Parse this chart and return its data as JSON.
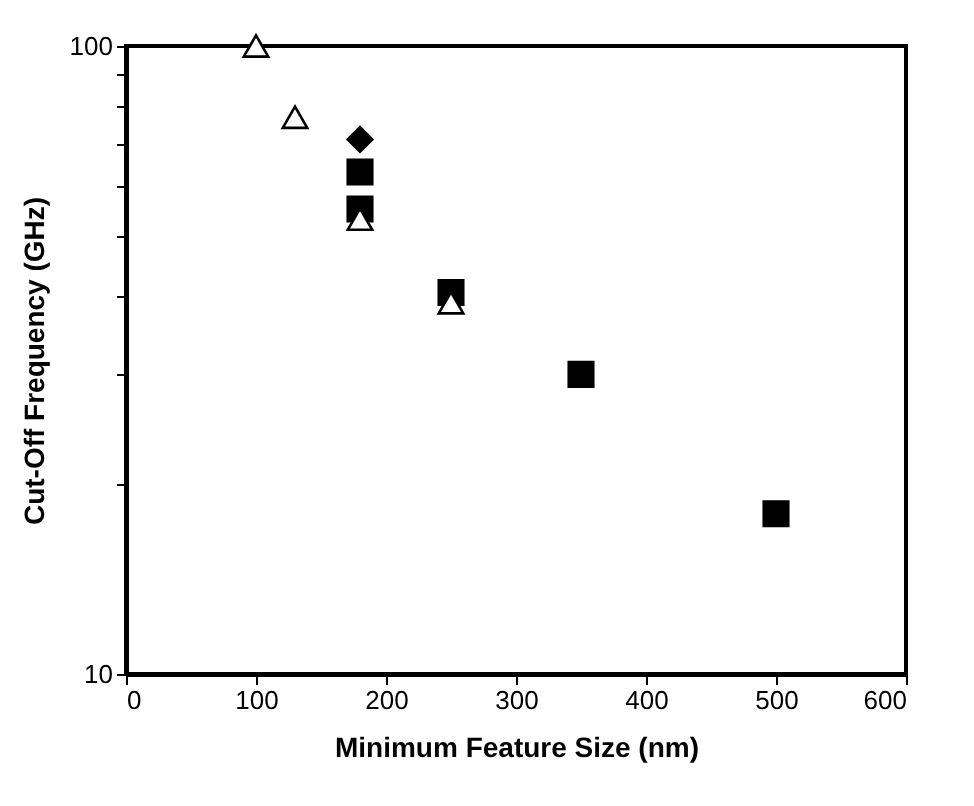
{
  "chart_data": {
    "type": "scatter",
    "xlabel": "Minimum Feature Size (nm)",
    "ylabel": "Cut-Off Frequency (GHz)",
    "log": "y",
    "grid": false,
    "xlim": [
      0,
      600
    ],
    "xticks": [
      0,
      100,
      200,
      300,
      400,
      500,
      600
    ],
    "ylim": [
      10,
      100
    ],
    "yticks": [
      10,
      {
        "value": 20,
        "label": null
      },
      {
        "value": 30,
        "label": null
      },
      {
        "value": 40,
        "label": null
      },
      {
        "value": 50,
        "label": null
      },
      {
        "value": 60,
        "label": null
      },
      {
        "value": 70,
        "label": null
      },
      {
        "value": 80,
        "label": null
      },
      {
        "value": 90,
        "label": null
      },
      100
    ],
    "series": [
      {
        "color": "#ffffff",
        "marker": "triangle",
        "x": [
          100,
          130,
          180,
          250
        ],
        "values": [
          100,
          77,
          53,
          39
        ]
      },
      {
        "color": "#000000",
        "marker": "diamond",
        "x": [
          180
        ],
        "values": [
          71
        ]
      },
      {
        "color": "#000000",
        "marker": "square",
        "x": [
          180,
          180,
          250,
          350,
          500
        ],
        "values": [
          63,
          55,
          40.5,
          30,
          18
        ]
      }
    ]
  }
}
